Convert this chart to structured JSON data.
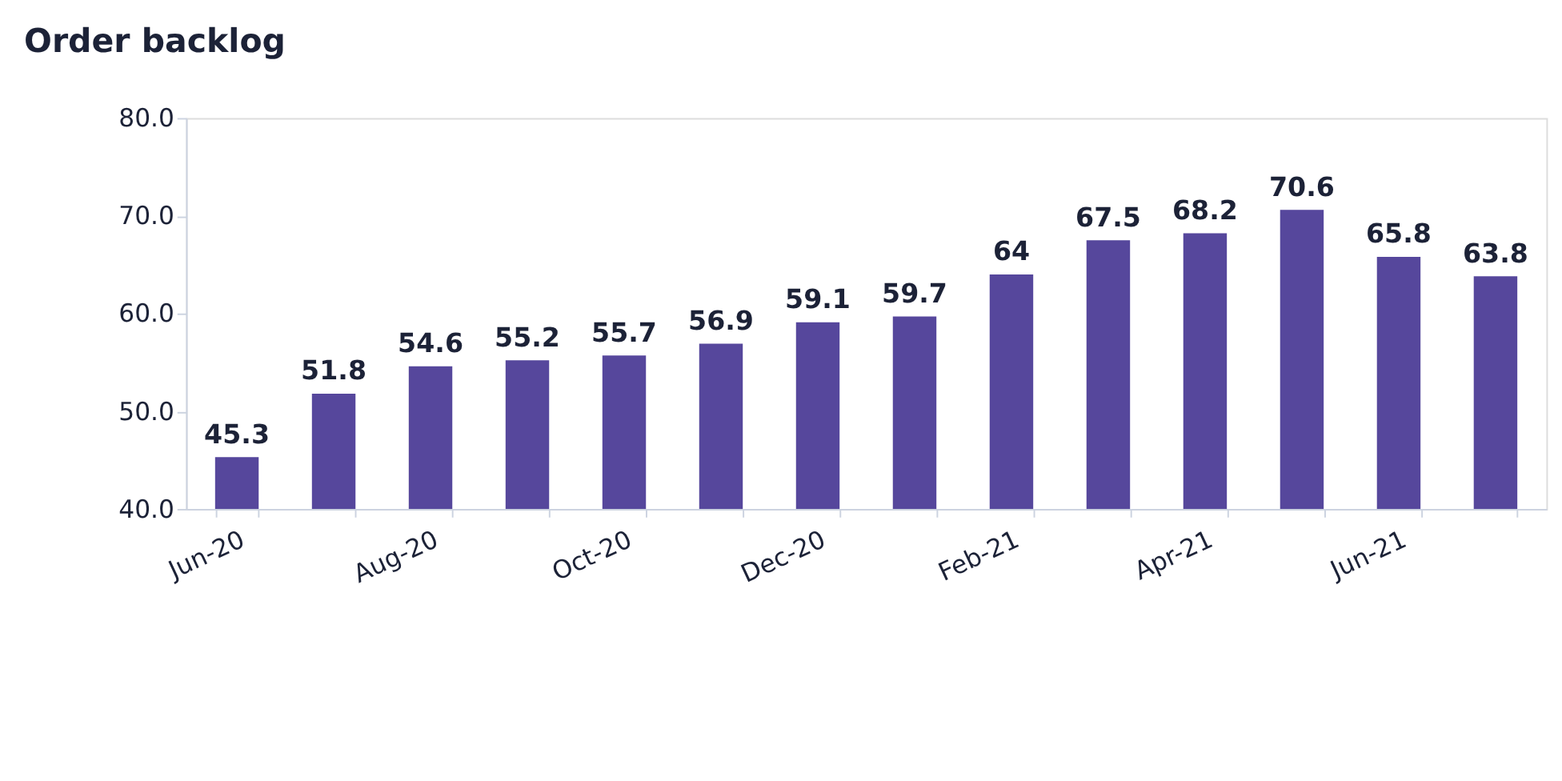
{
  "chart_data": {
    "type": "bar",
    "title": "Order backlog",
    "categories": [
      "Jun-20",
      null,
      "Aug-20",
      null,
      "Oct-20",
      null,
      "Dec-20",
      null,
      "Feb-21",
      null,
      "Apr-21",
      null,
      "Jun-21",
      null
    ],
    "values": [
      45.3,
      51.8,
      54.6,
      55.2,
      55.7,
      56.9,
      59.1,
      59.7,
      64,
      67.5,
      68.2,
      70.6,
      65.8,
      63.8
    ],
    "color": "#56479c",
    "ylim": [
      40,
      80
    ],
    "yticks": [
      {
        "value": 40,
        "label": "40.0"
      },
      {
        "value": 50,
        "label": "50.0"
      },
      {
        "value": 60,
        "label": "60.0"
      },
      {
        "value": 70,
        "label": "70.0"
      },
      {
        "value": 80,
        "label": "80.0"
      }
    ],
    "grid": false,
    "data_labels": true
  }
}
